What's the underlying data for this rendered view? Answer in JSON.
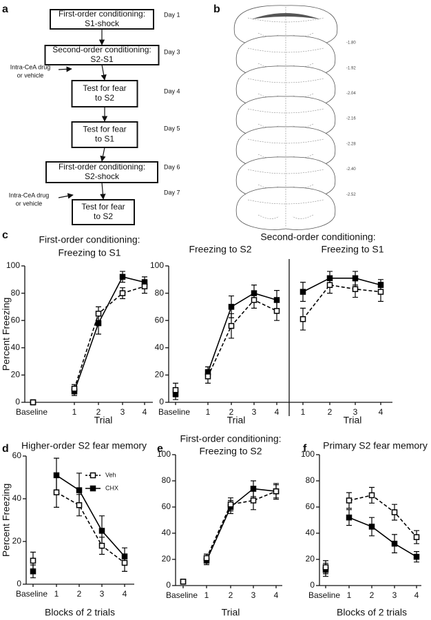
{
  "panel_labels": [
    "a",
    "b",
    "c",
    "d",
    "e",
    "f"
  ],
  "flowchart": {
    "nodes": [
      {
        "lines": [
          "First-order conditioning:",
          "S1-shock"
        ],
        "day": "Day 1"
      },
      {
        "lines": [
          "Second-order conditioning:",
          "S2-S1"
        ],
        "day": "Day 3"
      },
      {
        "lines": [
          "Test for fear",
          "to S2"
        ],
        "day": "Day 4"
      },
      {
        "lines": [
          "Test for fear",
          "to S1"
        ],
        "day": "Day 5"
      },
      {
        "lines": [
          "First-order conditioning:",
          "S2-shock"
        ],
        "day": "Day 6"
      },
      {
        "lines": [
          "Test for fear",
          "to S2"
        ],
        "day": "Day 7"
      }
    ],
    "inputs": [
      {
        "lines": [
          "Intra-CeA drug",
          "or vehicle"
        ]
      },
      {
        "lines": [
          "Intra-CeA drug",
          "or vehicle"
        ]
      }
    ]
  },
  "sections": {
    "labels": [
      "-1.80",
      "-1.92",
      "-2.04",
      "-2.16",
      "-2.28",
      "-2.40",
      "-2.52"
    ]
  },
  "chart_data": [
    {
      "type": "line",
      "title": "First-order conditioning:",
      "subtitle": "Freezing to S1",
      "xlabel": "Trial",
      "ylabel": "Percent Freezing",
      "baseline_label": "Baseline",
      "categories": [
        "1",
        "2",
        "3",
        "4"
      ],
      "ylim": [
        0,
        100
      ],
      "yticks": [
        0,
        20,
        40,
        60,
        80,
        100
      ],
      "series": [
        {
          "color": "#000000",
          "marker": "open",
          "linestyle": "dashed",
          "baseline": 0,
          "baseline_error": 0,
          "values": [
            10,
            65,
            80,
            85
          ],
          "errors": [
            3,
            5,
            4,
            5
          ]
        },
        {
          "color": "#000000",
          "marker": "filled",
          "linestyle": "solid",
          "baseline": 0,
          "baseline_error": 0,
          "values": [
            8,
            58,
            92,
            88
          ],
          "errors": [
            3,
            8,
            4,
            4
          ]
        }
      ]
    },
    {
      "type": "line",
      "title": "Second-order conditioning:",
      "subtitle": "Freezing to S2",
      "xlabel": "Trial",
      "baseline_label": "Baseline",
      "categories": [
        "1",
        "2",
        "3",
        "4"
      ],
      "ylim": [
        0,
        100
      ],
      "yticks": [
        0,
        20,
        40,
        60,
        80,
        100
      ],
      "series": [
        {
          "color": "#000000",
          "marker": "open",
          "linestyle": "dashed",
          "baseline": 9,
          "baseline_error": 5,
          "values": [
            19,
            56,
            75,
            67
          ],
          "errors": [
            5,
            9,
            6,
            7
          ]
        },
        {
          "color": "#000000",
          "marker": "filled",
          "linestyle": "solid",
          "baseline": 6,
          "baseline_error": 4,
          "values": [
            22,
            70,
            80,
            75
          ],
          "errors": [
            4,
            8,
            6,
            7
          ]
        }
      ]
    },
    {
      "type": "line",
      "subtitle": "Freezing to S1",
      "xlabel": "Trial",
      "categories": [
        "1",
        "2",
        "3",
        "4"
      ],
      "ylim": [
        0,
        100
      ],
      "series": [
        {
          "color": "#000000",
          "marker": "open",
          "linestyle": "dashed",
          "values": [
            61,
            86,
            83,
            81
          ],
          "errors": [
            8,
            6,
            6,
            7
          ]
        },
        {
          "color": "#000000",
          "marker": "filled",
          "linestyle": "solid",
          "values": [
            81,
            91,
            91,
            86
          ],
          "errors": [
            7,
            5,
            5,
            4
          ]
        }
      ]
    },
    {
      "type": "line",
      "title": "Higher-order S2 fear memory",
      "xlabel": "Blocks of 2 trials",
      "ylabel": "Percent Freezing",
      "baseline_label": "Baseline",
      "categories": [
        "1",
        "2",
        "3",
        "4"
      ],
      "ylim": [
        0,
        60
      ],
      "yticks": [
        0,
        20,
        40,
        60
      ],
      "legend": "upper right",
      "series": [
        {
          "name": "Veh",
          "color": "#000000",
          "marker": "open",
          "linestyle": "dashed",
          "baseline": 11,
          "baseline_error": 4,
          "values": [
            43,
            37,
            18,
            10
          ],
          "errors": [
            7,
            5,
            4,
            4
          ]
        },
        {
          "name": "CHX",
          "color": "#000000",
          "marker": "filled",
          "linestyle": "solid",
          "baseline": 6,
          "baseline_error": 3,
          "values": [
            51,
            44,
            25,
            13
          ],
          "errors": [
            8,
            8,
            7,
            4
          ]
        }
      ]
    },
    {
      "type": "line",
      "title": "First-order conditioning:",
      "subtitle": "Freezing to S2",
      "xlabel": "Trial",
      "baseline_label": "Baseline",
      "categories": [
        "1",
        "2",
        "3",
        "4"
      ],
      "ylim": [
        0,
        100
      ],
      "yticks": [
        0,
        20,
        40,
        60,
        80,
        100
      ],
      "series": [
        {
          "color": "#000000",
          "marker": "open",
          "linestyle": "dashed",
          "baseline": 3,
          "baseline_error": 1,
          "values": [
            21,
            62,
            65,
            72
          ],
          "errors": [
            3,
            5,
            7,
            5
          ]
        },
        {
          "color": "#000000",
          "marker": "filled",
          "linestyle": "solid",
          "baseline": 3,
          "baseline_error": 1,
          "values": [
            19,
            60,
            74,
            72
          ],
          "errors": [
            3,
            5,
            6,
            6
          ]
        }
      ]
    },
    {
      "type": "line",
      "title": "Primary S2 fear memory",
      "xlabel": "Blocks of 2 trials",
      "baseline_label": "Baseline",
      "categories": [
        "1",
        "2",
        "3",
        "4"
      ],
      "ylim": [
        0,
        100
      ],
      "yticks": [
        0,
        20,
        40,
        60,
        80,
        100
      ],
      "series": [
        {
          "color": "#000000",
          "marker": "open",
          "linestyle": "dashed",
          "baseline": 14,
          "baseline_error": 5,
          "values": [
            65,
            69,
            56,
            37
          ],
          "errors": [
            6,
            6,
            6,
            5
          ]
        },
        {
          "color": "#000000",
          "marker": "filled",
          "linestyle": "solid",
          "baseline": 12,
          "baseline_error": 5,
          "values": [
            52,
            45,
            32,
            22
          ],
          "errors": [
            6,
            7,
            7,
            4
          ]
        }
      ]
    }
  ]
}
